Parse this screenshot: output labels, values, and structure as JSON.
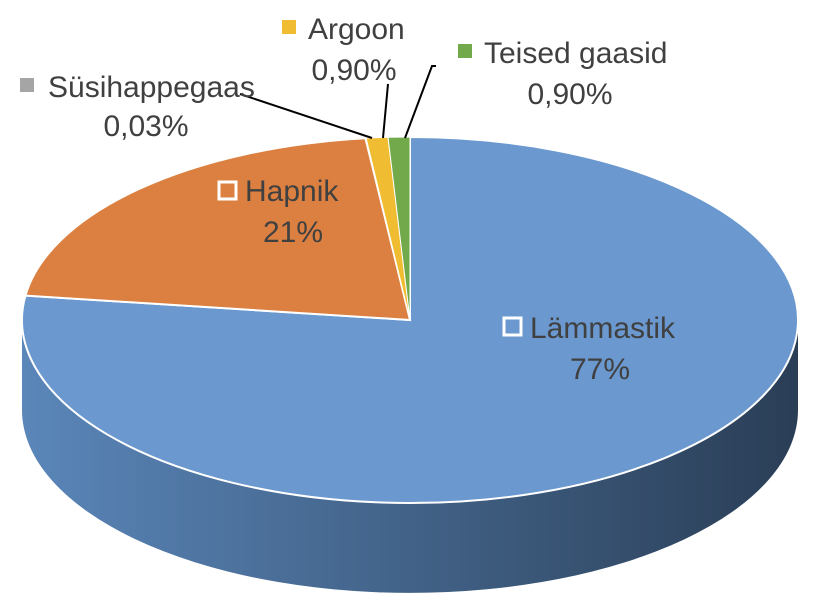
{
  "chart_data": {
    "type": "pie",
    "style": "3d",
    "title": "",
    "slices": [
      {
        "name": "Lämmastik",
        "value": 77,
        "value_label": "77%",
        "color": "#6A98CF",
        "label_style": "inside"
      },
      {
        "name": "Hapnik",
        "value": 21,
        "value_label": "21%",
        "color": "#DB8040",
        "label_style": "inside"
      },
      {
        "name": "Süsihappegaas",
        "value": 0.03,
        "value_label": "0,03%",
        "color": "#A5A5A5",
        "label_style": "callout"
      },
      {
        "name": "Argoon",
        "value": 0.9,
        "value_label": "0,90%",
        "color": "#F0BD32",
        "label_style": "callout"
      },
      {
        "name": "Teised gaasid",
        "value": 0.9,
        "value_label": "0,90%",
        "color": "#72A94B",
        "label_style": "callout"
      }
    ],
    "side_colors": {
      "light": "#5A86B9",
      "dark": "#2A3E56"
    }
  }
}
